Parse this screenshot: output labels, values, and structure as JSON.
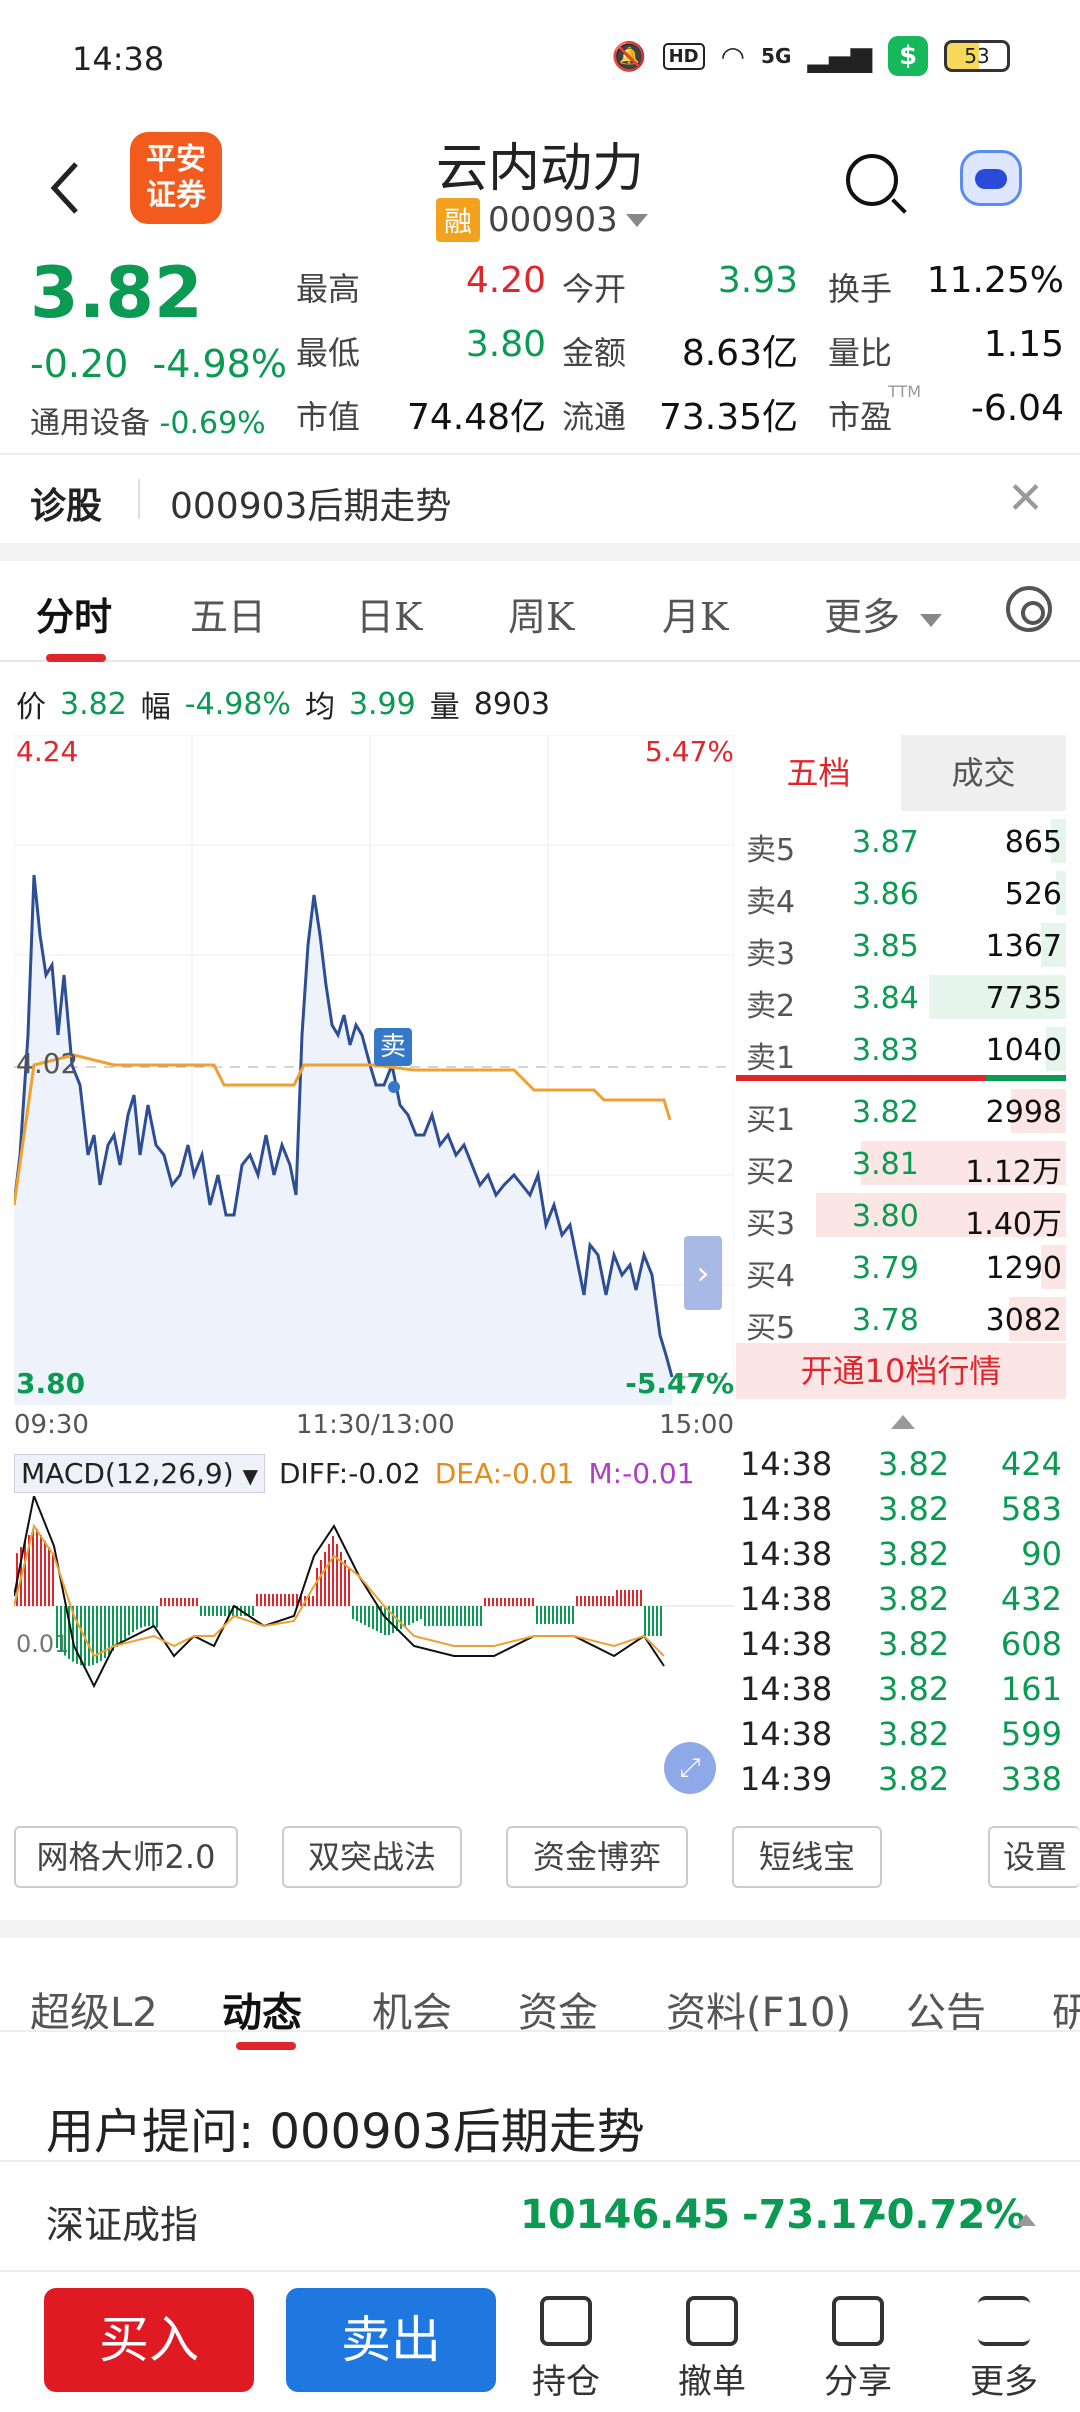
{
  "status": {
    "time": "14:38",
    "battery": "53",
    "hd": "HD",
    "net": "5G",
    "shield": "$"
  },
  "header": {
    "title": "云内动力",
    "logo_line1": "平安",
    "logo_line2": "证券",
    "rong": "融",
    "code": "000903"
  },
  "quote": {
    "price": "3.82",
    "change": "-0.20",
    "change_pct": "-4.98%",
    "sector_name": "通用设备",
    "sector_pct": "-0.69%",
    "fields": [
      {
        "label": "最高",
        "value": "4.20",
        "color": "red"
      },
      {
        "label": "今开",
        "value": "3.93",
        "color": "green"
      },
      {
        "label": "换手",
        "value": "11.25%",
        "color": "dark"
      },
      {
        "label": "最低",
        "value": "3.80",
        "color": "green"
      },
      {
        "label": "金额",
        "value": "8.63亿",
        "color": "dark"
      },
      {
        "label": "量比",
        "value": "1.15",
        "color": "dark"
      },
      {
        "label": "市值",
        "value": "74.48亿",
        "color": "dark"
      },
      {
        "label": "流通",
        "value": "73.35亿",
        "color": "dark"
      },
      {
        "label": "市盈",
        "value": "-6.04",
        "color": "dark",
        "sup": "TTM"
      }
    ]
  },
  "diagnose": {
    "title": "诊股",
    "query": "000903后期走势"
  },
  "chart_tabs": [
    "分时",
    "五日",
    "日K",
    "周K",
    "月K",
    "更多"
  ],
  "price_info": {
    "p_label": "价",
    "p": "3.82",
    "f_label": "幅",
    "f": "-4.98%",
    "avg_label": "均",
    "avg": "3.99",
    "vol_label": "量",
    "vol": "8903"
  },
  "intraday": {
    "top_price": "4.24",
    "top_pct": "5.47%",
    "mid_price": "4.02",
    "bot_price": "3.80",
    "bot_pct": "-5.47%",
    "time_start": "09:30",
    "time_mid": "11:30/13:00",
    "time_end": "15:00",
    "sell_marker": "卖",
    "colors": {
      "price_line": "#2d4d95",
      "avg_line": "#f0a030",
      "up": "#e0262b",
      "down": "#0a9a52"
    }
  },
  "macd": {
    "label": "MACD(12,26,9)",
    "diff": "DIFF:-0.02",
    "dea": "DEA:-0.01",
    "m": "M:-0.01",
    "zero": "0.01"
  },
  "orderbook": {
    "tab_five": "五档",
    "tab_deal": "成交",
    "asks": [
      {
        "label": "卖5",
        "price": "3.87",
        "vol": "865",
        "bar": 0.06
      },
      {
        "label": "卖4",
        "price": "3.86",
        "vol": "526",
        "bar": 0.04
      },
      {
        "label": "卖3",
        "price": "3.85",
        "vol": "1367",
        "bar": 0.1
      },
      {
        "label": "卖2",
        "price": "3.84",
        "vol": "7735",
        "bar": 0.55
      },
      {
        "label": "卖1",
        "price": "3.83",
        "vol": "1040",
        "bar": 0.08
      }
    ],
    "bids": [
      {
        "label": "买1",
        "price": "3.82",
        "vol": "2998",
        "bar": 0.22
      },
      {
        "label": "买2",
        "price": "3.81",
        "vol": "1.12万",
        "bar": 0.82
      },
      {
        "label": "买3",
        "price": "3.80",
        "vol": "1.40万",
        "bar": 1.0
      },
      {
        "label": "买4",
        "price": "3.79",
        "vol": "1290",
        "bar": 0.1
      },
      {
        "label": "买5",
        "price": "3.78",
        "vol": "3082",
        "bar": 0.23
      }
    ],
    "upgrade": "开通10档行情"
  },
  "deals": [
    {
      "t": "14:38",
      "p": "3.82",
      "v": "424"
    },
    {
      "t": "14:38",
      "p": "3.82",
      "v": "583"
    },
    {
      "t": "14:38",
      "p": "3.82",
      "v": "90"
    },
    {
      "t": "14:38",
      "p": "3.82",
      "v": "432"
    },
    {
      "t": "14:38",
      "p": "3.82",
      "v": "608"
    },
    {
      "t": "14:38",
      "p": "3.82",
      "v": "161"
    },
    {
      "t": "14:38",
      "p": "3.82",
      "v": "599"
    },
    {
      "t": "14:39",
      "p": "3.82",
      "v": "338"
    }
  ],
  "tools": [
    "网格大师2.0",
    "双突战法",
    "资金博弈",
    "短线宝",
    "设置"
  ],
  "info_tabs": [
    "超级L2",
    "动态",
    "机会",
    "资金",
    "资料(F10)",
    "公告",
    "研"
  ],
  "qa": {
    "prefix": "用户提问:",
    "text": "000903后期走势"
  },
  "index": {
    "name": "深证成指",
    "value": "10146.45",
    "change": "-73.17",
    "pct": "-0.72%"
  },
  "bottom": {
    "buy": "买入",
    "sell": "卖出",
    "items": [
      "持仓",
      "撤单",
      "分享",
      "更多"
    ]
  }
}
